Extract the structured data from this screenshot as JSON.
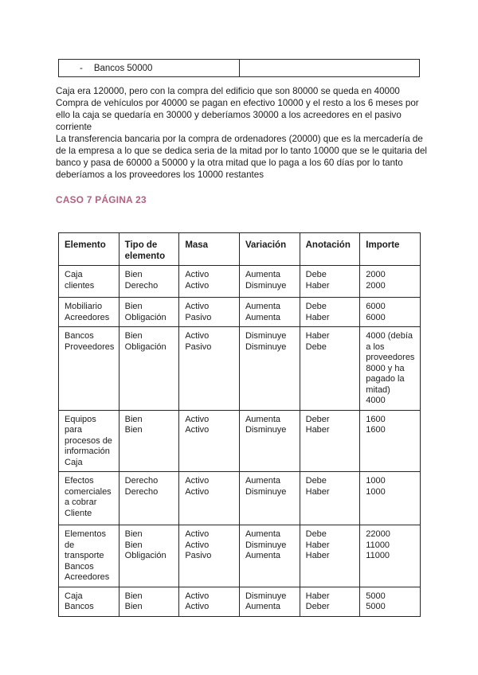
{
  "page": {
    "background_color": "#ffffff",
    "text_color": "#1c1c1c",
    "border_color": "#2b2b2b"
  },
  "top_table": {
    "bullet": "-",
    "left_cell": "Bancos 50000",
    "right_cell": ""
  },
  "paragraph": {
    "lines": [
      "Caja era 120000, pero con la compra del edificio que son 80000 se queda en 40000",
      "Compra de vehículos por 40000 se pagan en efectivo 10000 y el resto a los 6 meses por",
      "ello la caja se quedaría en 30000 y deberíamos 30000 a los acreedores en el pasivo",
      "corriente",
      "La transferencia bancaria por la compra de ordenadores (20000) que es la mercadería de",
      "de la empresa a lo que se dedica seria de la mitad por lo tanto 10000 que se le quitaria del",
      "banco y pasa de 60000 a 50000 y la otra mitad que lo paga a los 60 días por lo tanto",
      "deberíamos a los proveedores los 10000 restantes"
    ]
  },
  "heading": {
    "text": "CASO 7 PÁGINA 23",
    "color": "#b2607f"
  },
  "table": {
    "columns": [
      "Elemento",
      "Tipo de elemento",
      "Masa",
      "Variación",
      "Anotación",
      "Importe"
    ],
    "rows": [
      [
        [
          "Caja",
          "clientes"
        ],
        [
          "Bien",
          "Derecho"
        ],
        [
          "Activo",
          "Activo"
        ],
        [
          "Aumenta",
          "Disminuye"
        ],
        [
          "Debe",
          "Haber"
        ],
        [
          "2000",
          "2000"
        ]
      ],
      [
        [
          "Mobiliario",
          "Acreedores"
        ],
        [
          "Bien",
          "Obligación"
        ],
        [
          "Activo",
          "Pasivo"
        ],
        [
          "Aumenta",
          "Aumenta"
        ],
        [
          "Debe",
          "Haber"
        ],
        [
          "6000",
          "6000"
        ]
      ],
      [
        [
          "Bancos",
          "Proveedores"
        ],
        [
          "Bien",
          "Obligación"
        ],
        [
          "Activo",
          "Pasivo"
        ],
        [
          "Disminuye",
          "Disminuye"
        ],
        [
          "Haber",
          "Debe"
        ],
        [
          "4000 (debía a los proveedores 8000 y ha pagado la mitad)",
          "4000"
        ]
      ],
      [
        [
          "Equipos para procesos de información",
          "Caja"
        ],
        [
          "Bien",
          "Bien"
        ],
        [
          "Activo",
          "Activo"
        ],
        [
          "Aumenta",
          "Disminuye"
        ],
        [
          "Deber",
          "Haber"
        ],
        [
          "1600",
          "1600"
        ]
      ],
      [
        [
          "Efectos comerciales a cobrar",
          "Cliente"
        ],
        [
          "Derecho",
          "Derecho"
        ],
        [
          "Activo",
          "Activo"
        ],
        [
          "Aumenta",
          "Disminuye"
        ],
        [
          "Debe",
          "Haber"
        ],
        [
          "1000",
          "1000"
        ]
      ],
      [
        [
          "Elementos de transporte",
          "Bancos",
          "Acreedores"
        ],
        [
          "Bien",
          "Bien",
          "Obligación"
        ],
        [
          "Activo",
          "Activo",
          "Pasivo"
        ],
        [
          "Aumenta",
          "Disminuye",
          "Aumenta"
        ],
        [
          "Debe",
          "Haber",
          "Haber"
        ],
        [
          "22000",
          "11000",
          "11000"
        ]
      ],
      [
        [
          "Caja",
          "Bancos"
        ],
        [
          "Bien",
          "Bien"
        ],
        [
          "Activo",
          "Activo"
        ],
        [
          "Disminuye",
          "Aumenta"
        ],
        [
          "Haber",
          "Deber"
        ],
        [
          "5000",
          "5000"
        ]
      ]
    ]
  }
}
